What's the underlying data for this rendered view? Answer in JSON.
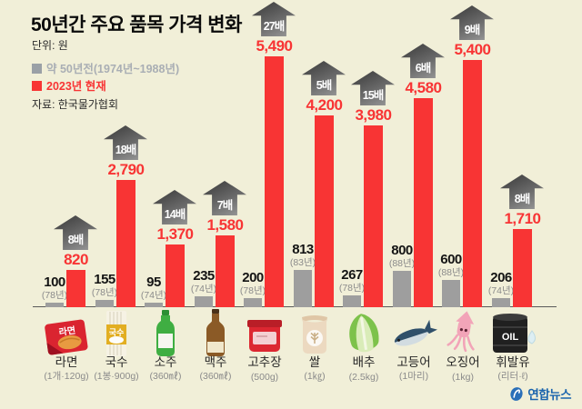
{
  "header": {
    "title": "50년간 주요 품목 가격 변화",
    "unit_label": "단위: 원",
    "source": "자료: 한국물가협회"
  },
  "legend": {
    "old_label": "약 50년전(1974년~1988년)",
    "new_label": "2023년 현재"
  },
  "watermark": "연합뉴스",
  "colors": {
    "background": "#f1efd8",
    "bar_new": "#f83434",
    "bar_old": "#9e9e9e",
    "legend_old_text": "#a9aeb4",
    "arrow_badge_dark": "#3d3d3d",
    "arrow_badge_light": "#9c9c9c",
    "yonhap_blue": "#1a64ad"
  },
  "icon_texts": {
    "ramen": "라면",
    "noodles": "국수",
    "oil": "OIL"
  },
  "chart_data": {
    "type": "bar",
    "title": "50년간 주요 품목 가격 변화",
    "ylabel": "원",
    "legend_position": "top-left",
    "grid": false,
    "categories": [
      "라면",
      "국수",
      "소주",
      "맥주",
      "고추장",
      "쌀",
      "배추",
      "고등어",
      "오징어",
      "휘발유"
    ],
    "units": [
      "(1개·120g)",
      "(1봉·900g)",
      "(360㎖)",
      "(360㎖)",
      "(500g)",
      "(1㎏)",
      "(2.5kg)",
      "(1마리)",
      "(1kg)",
      "(리터·ℓ)"
    ],
    "series": [
      {
        "name": "약 50년전(1974년~1988년)",
        "values": [
          100,
          155,
          95,
          235,
          200,
          813,
          267,
          800,
          600,
          206
        ],
        "value_labels": [
          "100",
          "155",
          "95",
          "235",
          "200",
          "813",
          "267",
          "800",
          "600",
          "206"
        ],
        "year_labels": [
          "(78년)",
          "(78년)",
          "(74년)",
          "(74년)",
          "(78년)",
          "(83년)",
          "(78년)",
          "(88년)",
          "(88년)",
          "(74년)"
        ]
      },
      {
        "name": "2023년 현재",
        "values": [
          820,
          2790,
          1370,
          1580,
          5490,
          4200,
          3980,
          4580,
          5400,
          1710
        ],
        "value_labels": [
          "820",
          "2,790",
          "1,370",
          "1,580",
          "5,490",
          "4,200",
          "3,980",
          "4,580",
          "5,400",
          "1,710"
        ]
      }
    ],
    "multipliers": [
      "8배",
      "18배",
      "14배",
      "7배",
      "27배",
      "5배",
      "15배",
      "6배",
      "9배",
      "8배"
    ]
  }
}
